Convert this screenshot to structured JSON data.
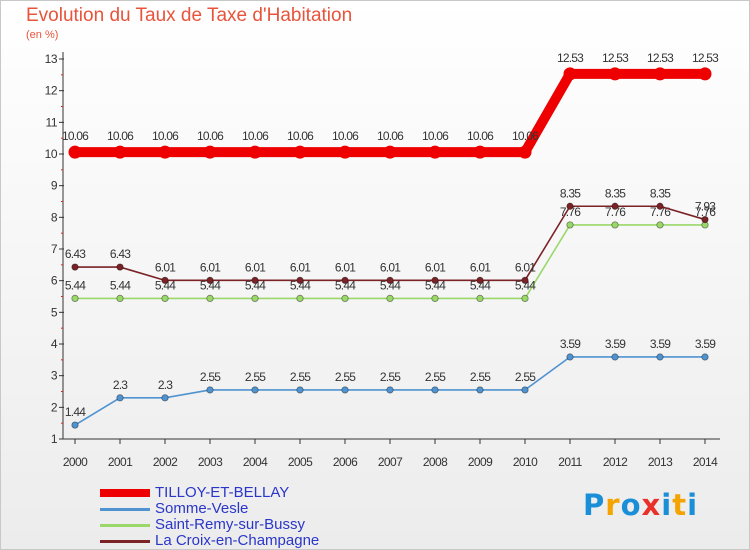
{
  "title": "Evolution du Taux de Taxe d'Habitation",
  "unit_label": "(en %)",
  "logo": [
    "P",
    "r",
    "o",
    "x",
    "i",
    "t",
    "i"
  ],
  "logo_colors": [
    "#1a8fd8",
    "#f5a300",
    "#1a8fd8",
    "#e8312a",
    "#1a8fd8",
    "#f5a300",
    "#1a8fd8"
  ],
  "chart_data": {
    "type": "line",
    "x": [
      "2000",
      "2001",
      "2002",
      "2003",
      "2004",
      "2005",
      "2006",
      "2007",
      "2008",
      "2009",
      "2010",
      "2011",
      "2012",
      "2013",
      "2014"
    ],
    "yticks": [
      1,
      2,
      3,
      4,
      5,
      6,
      7,
      8,
      9,
      10,
      11,
      12,
      13
    ],
    "ylim": [
      1,
      13
    ],
    "grid": false,
    "legend_position": "bottom-left",
    "series": [
      {
        "name": "TILLOY-ET-BELLAY",
        "color": "#ee0000",
        "values": [
          10.06,
          10.06,
          10.06,
          10.06,
          10.06,
          10.06,
          10.06,
          10.06,
          10.06,
          10.06,
          10.06,
          12.53,
          12.53,
          12.53,
          12.53
        ],
        "labels": [
          "10.06",
          "10.06",
          "10.06",
          "10.06",
          "10.06",
          "10.06",
          "10.06",
          "10.06",
          "10.06",
          "10.06",
          "10.06",
          "12.53",
          "12.53",
          "12.53",
          "12.53"
        ]
      },
      {
        "name": "Somme-Vesle",
        "color": "#4f93d0",
        "values": [
          1.44,
          2.3,
          2.3,
          2.55,
          2.55,
          2.55,
          2.55,
          2.55,
          2.55,
          2.55,
          2.55,
          3.59,
          3.59,
          3.59,
          3.59
        ],
        "labels": [
          "1.44",
          "2.3",
          "2.3",
          "2.55",
          "2.55",
          "2.55",
          "2.55",
          "2.55",
          "2.55",
          "2.55",
          "2.55",
          "3.59",
          "3.59",
          "3.59",
          "3.59"
        ]
      },
      {
        "name": "Saint-Remy-sur-Bussy",
        "color": "#9ad86a",
        "values": [
          5.44,
          5.44,
          5.44,
          5.44,
          5.44,
          5.44,
          5.44,
          5.44,
          5.44,
          5.44,
          5.44,
          7.76,
          7.76,
          7.76,
          7.76
        ],
        "labels": [
          "5.44",
          "5.44",
          "5.44",
          "5.44",
          "5.44",
          "5.44",
          "5.44",
          "5.44",
          "5.44",
          "5.44",
          "5.44",
          "7.76",
          "7.76",
          "7.76",
          "7.76"
        ]
      },
      {
        "name": "La Croix-en-Champagne",
        "color": "#7a2226",
        "values": [
          6.43,
          6.43,
          6.01,
          6.01,
          6.01,
          6.01,
          6.01,
          6.01,
          6.01,
          6.01,
          6.01,
          8.35,
          8.35,
          8.35,
          7.93
        ],
        "labels": [
          "6.43",
          "6.43",
          "6.01",
          "6.01",
          "6.01",
          "6.01",
          "6.01",
          "6.01",
          "6.01",
          "6.01",
          "6.01",
          "8.35",
          "8.35",
          "8.35",
          "7.93"
        ]
      }
    ]
  }
}
